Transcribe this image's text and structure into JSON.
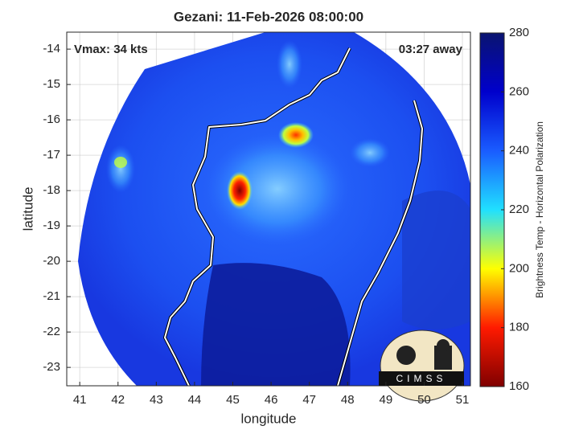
{
  "chart_data": {
    "type": "image",
    "title": "Gezani: 11-Feb-2026 08:00:00",
    "annotations": [
      "Vmax: 34 kts",
      "03:27 away"
    ],
    "logo": "CIMSS",
    "x_label": "longitude",
    "y_label": "latitude",
    "xlim": [
      40.66,
      51.21
    ],
    "ylim": [
      -23.52,
      -13.52
    ],
    "xticks": [
      41,
      42,
      43,
      44,
      45,
      46,
      47,
      48,
      49,
      50,
      51
    ],
    "yticks": [
      -23,
      -22,
      -21,
      -20,
      -19,
      -18,
      -17,
      -16,
      -15,
      -14
    ],
    "grid": true,
    "colorbar": {
      "label": "Brightness Temp - Horizontal Polarization",
      "lim": [
        160,
        280
      ],
      "ticks": [
        160,
        180,
        200,
        220,
        240,
        260,
        280
      ],
      "colors": [
        "#7f0000",
        "#ff1a00",
        "#ffff00",
        "#20e0ff",
        "#1a5cff",
        "#0000cc",
        "#0a1470"
      ]
    }
  }
}
